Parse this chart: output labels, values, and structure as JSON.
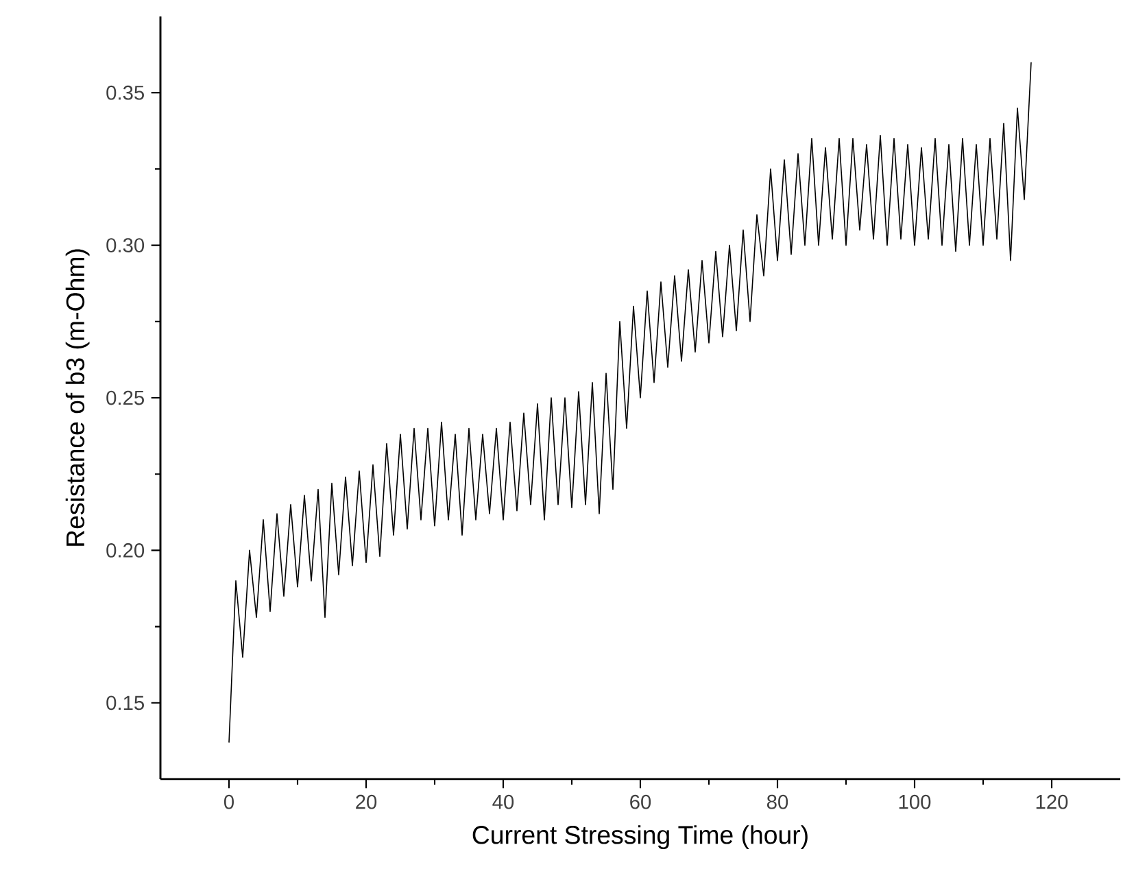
{
  "chart_data": {
    "type": "line",
    "xlabel": "Current Stressing Time (hour)",
    "ylabel": "Resistance of b3 (m-Ohm)",
    "xlim": [
      -10,
      130
    ],
    "xticks": [
      0,
      20,
      40,
      60,
      80,
      100,
      120
    ],
    "ylim": [
      0.125,
      0.375
    ],
    "yticks": [
      0.15,
      {
        "value": 0.2,
        "label": "0.20"
      },
      0.25,
      {
        "value": 0.3,
        "label": "0.30"
      },
      0.35
    ],
    "marker": "none",
    "line_style": "solid",
    "x": [
      0,
      1,
      2,
      3,
      4,
      5,
      6,
      7,
      8,
      9,
      10,
      11,
      12,
      13,
      14,
      15,
      16,
      17,
      18,
      19,
      20,
      21,
      22,
      23,
      24,
      25,
      26,
      27,
      28,
      29,
      30,
      31,
      32,
      33,
      34,
      35,
      36,
      37,
      38,
      39,
      40,
      41,
      42,
      43,
      44,
      45,
      46,
      47,
      48,
      49,
      50,
      51,
      52,
      53,
      54,
      55,
      56,
      57,
      58,
      59,
      60,
      61,
      62,
      63,
      64,
      65,
      66,
      67,
      68,
      69,
      70,
      71,
      72,
      73,
      74,
      75,
      76,
      77,
      78,
      79,
      80,
      81,
      82,
      83,
      84,
      85,
      86,
      87,
      88,
      89,
      90,
      91,
      92,
      93,
      94,
      95,
      96,
      97,
      98,
      99,
      100,
      101,
      102,
      103,
      104,
      105,
      106,
      107,
      108,
      109,
      110,
      111,
      112,
      113,
      114,
      115,
      116,
      117
    ],
    "series": [
      {
        "color": "#000000",
        "values": [
          0.137,
          0.19,
          0.165,
          0.2,
          0.178,
          0.21,
          0.18,
          0.212,
          0.185,
          0.215,
          0.188,
          0.218,
          0.19,
          0.22,
          0.178,
          0.222,
          0.192,
          0.224,
          0.195,
          0.226,
          0.196,
          0.228,
          0.198,
          0.235,
          0.205,
          0.238,
          0.207,
          0.24,
          0.21,
          0.24,
          0.208,
          0.242,
          0.21,
          0.238,
          0.205,
          0.24,
          0.21,
          0.238,
          0.212,
          0.24,
          0.21,
          0.242,
          0.213,
          0.245,
          0.215,
          0.248,
          0.21,
          0.25,
          0.215,
          0.25,
          0.214,
          0.252,
          0.215,
          0.255,
          0.212,
          0.258,
          0.22,
          0.275,
          0.24,
          0.28,
          0.25,
          0.285,
          0.255,
          0.288,
          0.26,
          0.29,
          0.262,
          0.292,
          0.265,
          0.295,
          0.268,
          0.298,
          0.27,
          0.3,
          0.272,
          0.305,
          0.275,
          0.31,
          0.29,
          0.325,
          0.295,
          0.328,
          0.297,
          0.33,
          0.3,
          0.335,
          0.3,
          0.332,
          0.302,
          0.335,
          0.3,
          0.335,
          0.305,
          0.333,
          0.302,
          0.336,
          0.3,
          0.335,
          0.302,
          0.333,
          0.3,
          0.332,
          0.302,
          0.335,
          0.3,
          0.333,
          0.298,
          0.335,
          0.3,
          0.333,
          0.3,
          0.335,
          0.302,
          0.34,
          0.295,
          0.345,
          0.315,
          0.36
        ]
      }
    ]
  }
}
